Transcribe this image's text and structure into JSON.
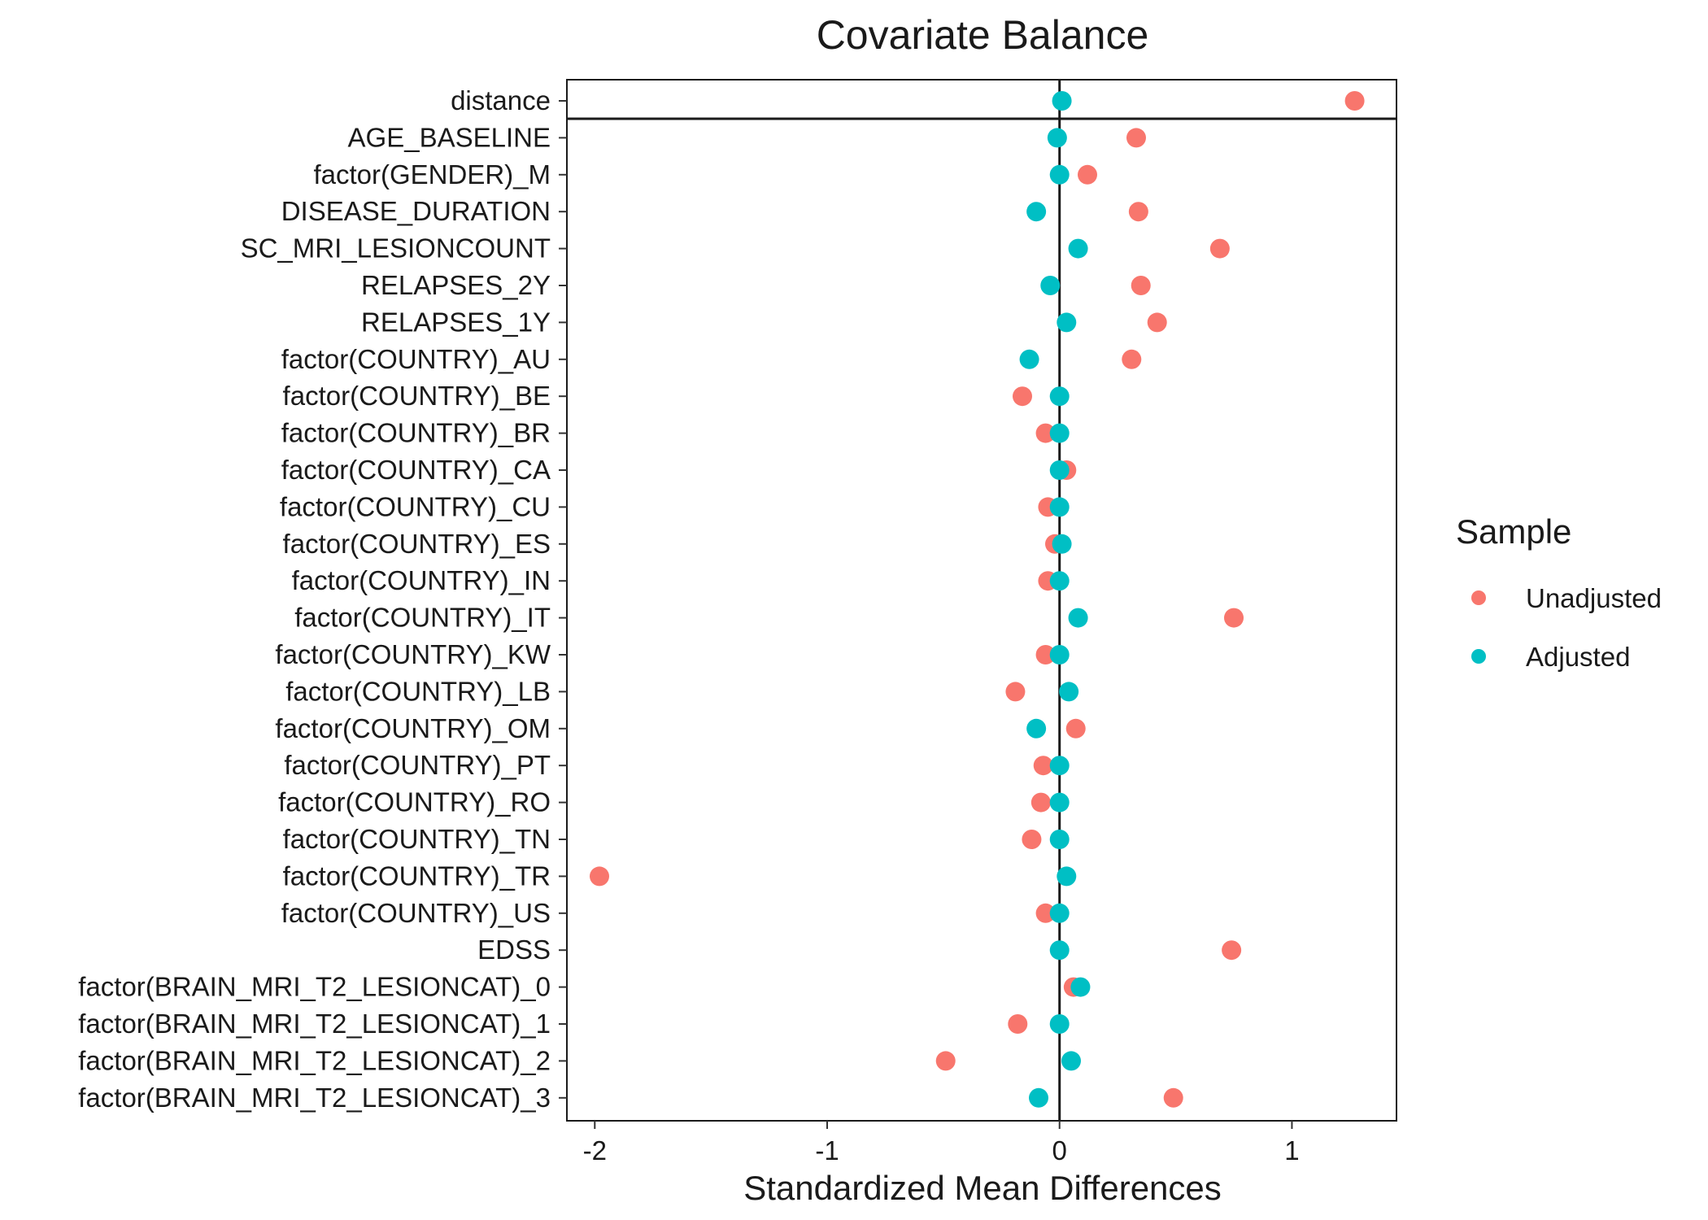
{
  "chart_data": {
    "type": "scatter",
    "title": "Covariate Balance",
    "xlabel": "Standardized Mean Differences",
    "ylabel": "",
    "xlim": [
      -2.12,
      1.45
    ],
    "xticks": [
      -2,
      -1,
      0,
      1
    ],
    "xtick_labels": [
      "-2",
      "-1",
      "0",
      "1"
    ],
    "reference_line_x": 0,
    "grid": false,
    "legend_position": "right",
    "legend_title": "Sample",
    "categories": [
      "distance",
      "AGE_BASELINE",
      "factor(GENDER)_M",
      "DISEASE_DURATION",
      "SC_MRI_LESIONCOUNT",
      "RELAPSES_2Y",
      "RELAPSES_1Y",
      "factor(COUNTRY)_AU",
      "factor(COUNTRY)_BE",
      "factor(COUNTRY)_BR",
      "factor(COUNTRY)_CA",
      "factor(COUNTRY)_CU",
      "factor(COUNTRY)_ES",
      "factor(COUNTRY)_IN",
      "factor(COUNTRY)_IT",
      "factor(COUNTRY)_KW",
      "factor(COUNTRY)_LB",
      "factor(COUNTRY)_OM",
      "factor(COUNTRY)_PT",
      "factor(COUNTRY)_RO",
      "factor(COUNTRY)_TN",
      "factor(COUNTRY)_TR",
      "factor(COUNTRY)_US",
      "EDSS",
      "factor(BRAIN_MRI_T2_LESIONCAT)_0",
      "factor(BRAIN_MRI_T2_LESIONCAT)_1",
      "factor(BRAIN_MRI_T2_LESIONCAT)_2",
      "factor(BRAIN_MRI_T2_LESIONCAT)_3"
    ],
    "series": [
      {
        "name": "Unadjusted",
        "color": "#F8766D",
        "values": [
          1.27,
          0.33,
          0.12,
          0.34,
          0.69,
          0.35,
          0.42,
          0.31,
          -0.16,
          -0.06,
          0.03,
          -0.05,
          -0.02,
          -0.05,
          0.75,
          -0.06,
          -0.19,
          0.07,
          -0.07,
          -0.08,
          -0.12,
          -1.98,
          -0.06,
          0.74,
          0.06,
          -0.18,
          -0.49,
          0.49
        ]
      },
      {
        "name": "Adjusted",
        "color": "#00BFC4",
        "values": [
          0.01,
          -0.01,
          0.0,
          -0.1,
          0.08,
          -0.04,
          0.03,
          -0.13,
          0.0,
          0.0,
          0.0,
          0.0,
          0.01,
          0.0,
          0.08,
          0.0,
          0.04,
          -0.1,
          0.0,
          0.0,
          0.0,
          0.03,
          0.0,
          0.0,
          0.09,
          0.0,
          0.05,
          -0.09
        ]
      }
    ]
  }
}
